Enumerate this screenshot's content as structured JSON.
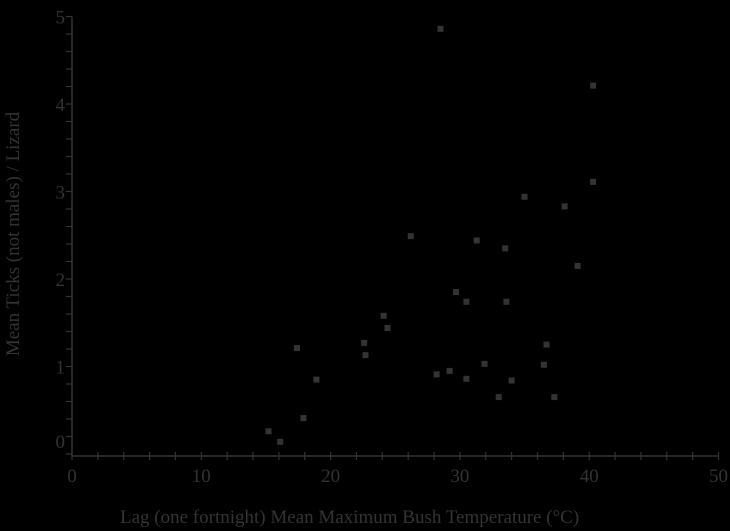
{
  "chart_data": {
    "type": "scatter",
    "title": "",
    "xlabel": "Lag (one fortnight) Mean Maximum Bush Temperature (°C)",
    "ylabel": "Mean Ticks (not males) / Lizard",
    "xlim": [
      0,
      50
    ],
    "ylim": [
      0,
      5
    ],
    "x_ticks": [
      0,
      10,
      20,
      30,
      40,
      50
    ],
    "y_ticks": [
      0,
      1,
      2,
      3,
      4,
      5
    ],
    "grid": false,
    "legend": null,
    "series": [
      {
        "name": "observations",
        "marker": "square",
        "color": "#333333",
        "points": [
          {
            "x": 15.2,
            "y": 0.26
          },
          {
            "x": 16.1,
            "y": 0.14
          },
          {
            "x": 17.4,
            "y": 1.21
          },
          {
            "x": 17.9,
            "y": 0.41
          },
          {
            "x": 18.9,
            "y": 0.85
          },
          {
            "x": 22.6,
            "y": 1.27
          },
          {
            "x": 22.7,
            "y": 1.13
          },
          {
            "x": 24.1,
            "y": 1.58
          },
          {
            "x": 24.4,
            "y": 1.44
          },
          {
            "x": 26.2,
            "y": 2.49
          },
          {
            "x": 28.2,
            "y": 0.91
          },
          {
            "x": 28.5,
            "y": 4.86
          },
          {
            "x": 29.2,
            "y": 0.95
          },
          {
            "x": 29.7,
            "y": 1.85
          },
          {
            "x": 30.5,
            "y": 1.74
          },
          {
            "x": 30.5,
            "y": 0.86
          },
          {
            "x": 31.3,
            "y": 2.44
          },
          {
            "x": 31.9,
            "y": 1.03
          },
          {
            "x": 33.0,
            "y": 0.65
          },
          {
            "x": 33.5,
            "y": 2.35
          },
          {
            "x": 33.6,
            "y": 1.74
          },
          {
            "x": 34.0,
            "y": 0.84
          },
          {
            "x": 35.0,
            "y": 2.94
          },
          {
            "x": 36.5,
            "y": 1.02
          },
          {
            "x": 36.7,
            "y": 1.25
          },
          {
            "x": 37.3,
            "y": 0.65
          },
          {
            "x": 38.1,
            "y": 2.83
          },
          {
            "x": 39.1,
            "y": 2.15
          },
          {
            "x": 40.3,
            "y": 3.11
          },
          {
            "x": 40.3,
            "y": 4.21
          }
        ]
      }
    ]
  },
  "axes": {
    "x_tick_labels": [
      "0",
      "10",
      "20",
      "30",
      "40",
      "50"
    ],
    "y_tick_labels": [
      "0",
      "1",
      "2",
      "3",
      "4",
      "5"
    ]
  },
  "colors": {
    "background": "#000000",
    "axis": "#333333",
    "text": "#333333",
    "marker": "#333333"
  }
}
